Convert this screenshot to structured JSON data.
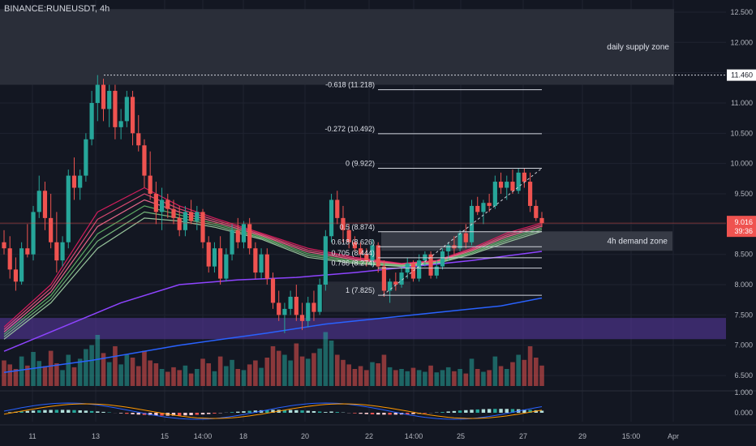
{
  "header": {
    "symbol": "BINANCE:RUNEUSDT",
    "sep": ", ",
    "interval": "4h"
  },
  "price_badge": {
    "price": "9.016",
    "countdown": "39:36"
  },
  "level_badge": {
    "price": "11.460"
  },
  "chart_data": {
    "type": "candlestick",
    "symbol": "RUNEUSDT",
    "interval": "4h",
    "ylim": [
      6.3,
      12.7
    ],
    "y_ticks": [
      "12.500",
      "12.000",
      "11.500",
      "11.000",
      "10.500",
      "10.000",
      "9.500",
      "9.000",
      "8.500",
      "8.000",
      "7.500",
      "7.000",
      "6.500"
    ],
    "x_ticks": [
      "11",
      "13",
      "15",
      "14:00",
      "18",
      "20",
      "22",
      "14:00",
      "25",
      "27",
      "29",
      "15:00",
      "Apr"
    ],
    "candles": [
      [
        8.7,
        8.9,
        8.5,
        8.6
      ],
      [
        8.6,
        8.8,
        8.1,
        8.25
      ],
      [
        8.25,
        8.45,
        7.9,
        8.05
      ],
      [
        8.05,
        8.7,
        8.0,
        8.6
      ],
      [
        8.6,
        9.0,
        8.45,
        8.5
      ],
      [
        8.5,
        9.3,
        8.4,
        9.2
      ],
      [
        9.2,
        9.8,
        9.1,
        9.55
      ],
      [
        9.55,
        9.7,
        8.9,
        9.1
      ],
      [
        9.1,
        9.5,
        8.6,
        8.7
      ],
      [
        8.7,
        9.2,
        8.2,
        8.4
      ],
      [
        8.4,
        8.8,
        8.3,
        8.7
      ],
      [
        8.7,
        9.9,
        8.6,
        9.8
      ],
      [
        9.8,
        10.1,
        9.4,
        9.6
      ],
      [
        9.6,
        9.9,
        9.4,
        9.8
      ],
      [
        9.8,
        10.5,
        9.7,
        10.4
      ],
      [
        10.4,
        11.2,
        10.3,
        11.0
      ],
      [
        11.0,
        11.46,
        10.7,
        11.3
      ],
      [
        11.3,
        11.4,
        10.7,
        10.9
      ],
      [
        10.9,
        11.3,
        10.6,
        11.2
      ],
      [
        11.2,
        11.3,
        10.4,
        10.6
      ],
      [
        10.6,
        10.9,
        10.4,
        10.7
      ],
      [
        10.7,
        11.2,
        10.6,
        11.1
      ],
      [
        11.1,
        11.2,
        10.3,
        10.5
      ],
      [
        10.5,
        10.8,
        10.2,
        10.3
      ],
      [
        10.3,
        10.4,
        9.6,
        9.8
      ],
      [
        9.8,
        10.2,
        9.4,
        9.5
      ],
      [
        9.5,
        9.7,
        9.0,
        9.2
      ],
      [
        9.2,
        9.6,
        8.9,
        9.4
      ],
      [
        9.4,
        9.5,
        9.1,
        9.25
      ],
      [
        9.25,
        9.4,
        9.0,
        9.1
      ],
      [
        9.1,
        9.3,
        8.8,
        8.9
      ],
      [
        8.9,
        9.3,
        8.8,
        9.2
      ],
      [
        9.2,
        9.4,
        9.0,
        9.05
      ],
      [
        9.05,
        9.3,
        8.9,
        9.2
      ],
      [
        9.2,
        9.25,
        8.6,
        8.7
      ],
      [
        8.7,
        8.8,
        8.2,
        8.3
      ],
      [
        8.3,
        8.7,
        8.2,
        8.6
      ],
      [
        8.6,
        8.8,
        8.0,
        8.1
      ],
      [
        8.1,
        8.6,
        8.05,
        8.5
      ],
      [
        8.5,
        9.0,
        8.4,
        8.9
      ],
      [
        8.9,
        9.1,
        8.6,
        8.7
      ],
      [
        8.7,
        9.05,
        8.6,
        9.0
      ],
      [
        9.0,
        9.1,
        8.5,
        8.6
      ],
      [
        8.6,
        8.7,
        8.1,
        8.2
      ],
      [
        8.2,
        8.6,
        8.1,
        8.5
      ],
      [
        8.5,
        8.6,
        8.0,
        8.1
      ],
      [
        8.1,
        8.2,
        7.6,
        7.7
      ],
      [
        7.7,
        7.9,
        7.4,
        7.5
      ],
      [
        7.5,
        7.7,
        7.2,
        7.6
      ],
      [
        7.6,
        7.9,
        7.5,
        7.8
      ],
      [
        7.8,
        8.0,
        7.4,
        7.5
      ],
      [
        7.5,
        7.7,
        7.25,
        7.4
      ],
      [
        7.4,
        7.8,
        7.3,
        7.7
      ],
      [
        7.7,
        7.9,
        7.4,
        7.55
      ],
      [
        7.55,
        8.1,
        7.5,
        8.0
      ],
      [
        8.0,
        8.9,
        7.9,
        8.8
      ],
      [
        8.8,
        9.5,
        8.7,
        9.4
      ],
      [
        9.4,
        9.55,
        9.0,
        9.1
      ],
      [
        9.1,
        9.3,
        8.7,
        8.9
      ],
      [
        8.9,
        9.0,
        8.6,
        8.7
      ],
      [
        8.7,
        8.8,
        8.55,
        8.6
      ],
      [
        8.6,
        8.7,
        8.4,
        8.5
      ],
      [
        8.5,
        8.6,
        8.3,
        8.4
      ],
      [
        8.4,
        8.75,
        8.3,
        8.65
      ],
      [
        8.65,
        8.7,
        8.2,
        8.3
      ],
      [
        8.3,
        8.4,
        7.8,
        7.9
      ],
      [
        7.9,
        8.1,
        7.7,
        8.05
      ],
      [
        8.05,
        8.2,
        7.9,
        8.0
      ],
      [
        8.0,
        8.3,
        7.95,
        8.2
      ],
      [
        8.2,
        8.45,
        8.1,
        8.35
      ],
      [
        8.35,
        8.4,
        8.05,
        8.1
      ],
      [
        8.1,
        8.5,
        8.05,
        8.4
      ],
      [
        8.4,
        8.55,
        8.3,
        8.5
      ],
      [
        8.5,
        8.55,
        8.1,
        8.15
      ],
      [
        8.15,
        8.4,
        8.1,
        8.3
      ],
      [
        8.3,
        8.6,
        8.25,
        8.55
      ],
      [
        8.55,
        8.7,
        8.4,
        8.65
      ],
      [
        8.65,
        8.8,
        8.5,
        8.6
      ],
      [
        8.6,
        8.9,
        8.55,
        8.85
      ],
      [
        8.85,
        9.0,
        8.6,
        8.7
      ],
      [
        8.7,
        9.4,
        8.65,
        9.3
      ],
      [
        9.3,
        9.45,
        9.15,
        9.2
      ],
      [
        9.2,
        9.4,
        9.0,
        9.35
      ],
      [
        9.35,
        9.5,
        9.2,
        9.3
      ],
      [
        9.3,
        9.8,
        9.25,
        9.7
      ],
      [
        9.7,
        9.85,
        9.5,
        9.6
      ],
      [
        9.6,
        9.8,
        9.4,
        9.7
      ],
      [
        9.7,
        9.9,
        9.5,
        9.55
      ],
      [
        9.55,
        9.92,
        9.5,
        9.85
      ],
      [
        9.85,
        9.92,
        9.6,
        9.7
      ],
      [
        9.7,
        9.85,
        9.2,
        9.3
      ],
      [
        9.3,
        9.4,
        9.05,
        9.1
      ],
      [
        9.1,
        9.2,
        8.95,
        9.016
      ]
    ],
    "volume": [
      0.45,
      0.38,
      0.3,
      0.52,
      0.36,
      0.6,
      0.44,
      0.35,
      0.62,
      0.4,
      0.28,
      0.55,
      0.33,
      0.48,
      0.65,
      0.72,
      0.9,
      0.58,
      0.42,
      0.7,
      0.38,
      0.55,
      0.5,
      0.35,
      0.62,
      0.45,
      0.4,
      0.3,
      0.25,
      0.33,
      0.28,
      0.36,
      0.22,
      0.3,
      0.48,
      0.4,
      0.26,
      0.52,
      0.35,
      0.46,
      0.3,
      0.28,
      0.38,
      0.45,
      0.32,
      0.5,
      0.7,
      0.62,
      0.55,
      0.45,
      0.75,
      0.52,
      0.48,
      0.58,
      0.66,
      0.95,
      0.8,
      0.55,
      0.46,
      0.38,
      0.3,
      0.35,
      0.28,
      0.42,
      0.4,
      0.55,
      0.33,
      0.28,
      0.3,
      0.26,
      0.32,
      0.28,
      0.25,
      0.36,
      0.24,
      0.28,
      0.33,
      0.26,
      0.3,
      0.22,
      0.48,
      0.3,
      0.25,
      0.28,
      0.52,
      0.35,
      0.3,
      0.42,
      0.55,
      0.46,
      0.7,
      0.5,
      0.36
    ],
    "ema_ribbon_top": [
      [
        0,
        7.3
      ],
      [
        8,
        8.0
      ],
      [
        16,
        9.2
      ],
      [
        24,
        9.6
      ],
      [
        30,
        9.3
      ],
      [
        36,
        9.1
      ],
      [
        44,
        8.85
      ],
      [
        52,
        8.6
      ],
      [
        60,
        8.45
      ],
      [
        68,
        8.35
      ],
      [
        74,
        8.4
      ],
      [
        80,
        8.6
      ],
      [
        86,
        8.85
      ],
      [
        92,
        9.02
      ]
    ],
    "ema_ribbon_bottom": [
      [
        0,
        7.1
      ],
      [
        8,
        7.7
      ],
      [
        16,
        8.6
      ],
      [
        24,
        9.1
      ],
      [
        30,
        9.05
      ],
      [
        36,
        8.95
      ],
      [
        44,
        8.75
      ],
      [
        52,
        8.45
      ],
      [
        60,
        8.35
      ],
      [
        68,
        8.3
      ],
      [
        74,
        8.35
      ],
      [
        80,
        8.5
      ],
      [
        86,
        8.7
      ],
      [
        92,
        8.88
      ]
    ],
    "ema_purple": [
      [
        0,
        6.9
      ],
      [
        10,
        7.3
      ],
      [
        20,
        7.7
      ],
      [
        30,
        8.0
      ],
      [
        40,
        8.08
      ],
      [
        50,
        8.12
      ],
      [
        60,
        8.2
      ],
      [
        70,
        8.3
      ],
      [
        80,
        8.4
      ],
      [
        92,
        8.55
      ]
    ],
    "ema_blue": [
      [
        0,
        6.55
      ],
      [
        15,
        6.75
      ],
      [
        30,
        7.0
      ],
      [
        45,
        7.2
      ],
      [
        55,
        7.35
      ],
      [
        65,
        7.45
      ],
      [
        75,
        7.55
      ],
      [
        85,
        7.65
      ],
      [
        92,
        7.78
      ]
    ],
    "fibonacci": [
      {
        "label": "-0.618 (11.218)",
        "value": 11.218
      },
      {
        "label": "-0.272 (10.492)",
        "value": 10.492
      },
      {
        "label": "0 (9.922)",
        "value": 9.922
      },
      {
        "label": "0.5 (8.874)",
        "value": 8.874
      },
      {
        "label": "0.618 (8.626)",
        "value": 8.626
      },
      {
        "label": "0.705 (8.444)",
        "value": 8.444
      },
      {
        "label": "0.786 (8.274)",
        "value": 8.274
      },
      {
        "label": "1 (7.825)",
        "value": 7.825
      }
    ],
    "zones": [
      {
        "label": "daily supply zone",
        "y_from": 11.3,
        "y_to": 12.55,
        "color": "#2a2e39"
      },
      {
        "label": "4h demand zone",
        "y_from": 8.56,
        "y_to": 8.88,
        "color": "#363a45"
      },
      {
        "label": "",
        "y_from": 7.1,
        "y_to": 7.45,
        "color": "#5b3aa6"
      }
    ],
    "level_line": 11.46,
    "last_price": 9.016,
    "macd_ticks": [
      "1.000",
      "0.000"
    ],
    "colors": {
      "up": "#26a69a",
      "down": "#ef5350",
      "purple": "#8e44ff",
      "blue": "#2962ff"
    }
  }
}
